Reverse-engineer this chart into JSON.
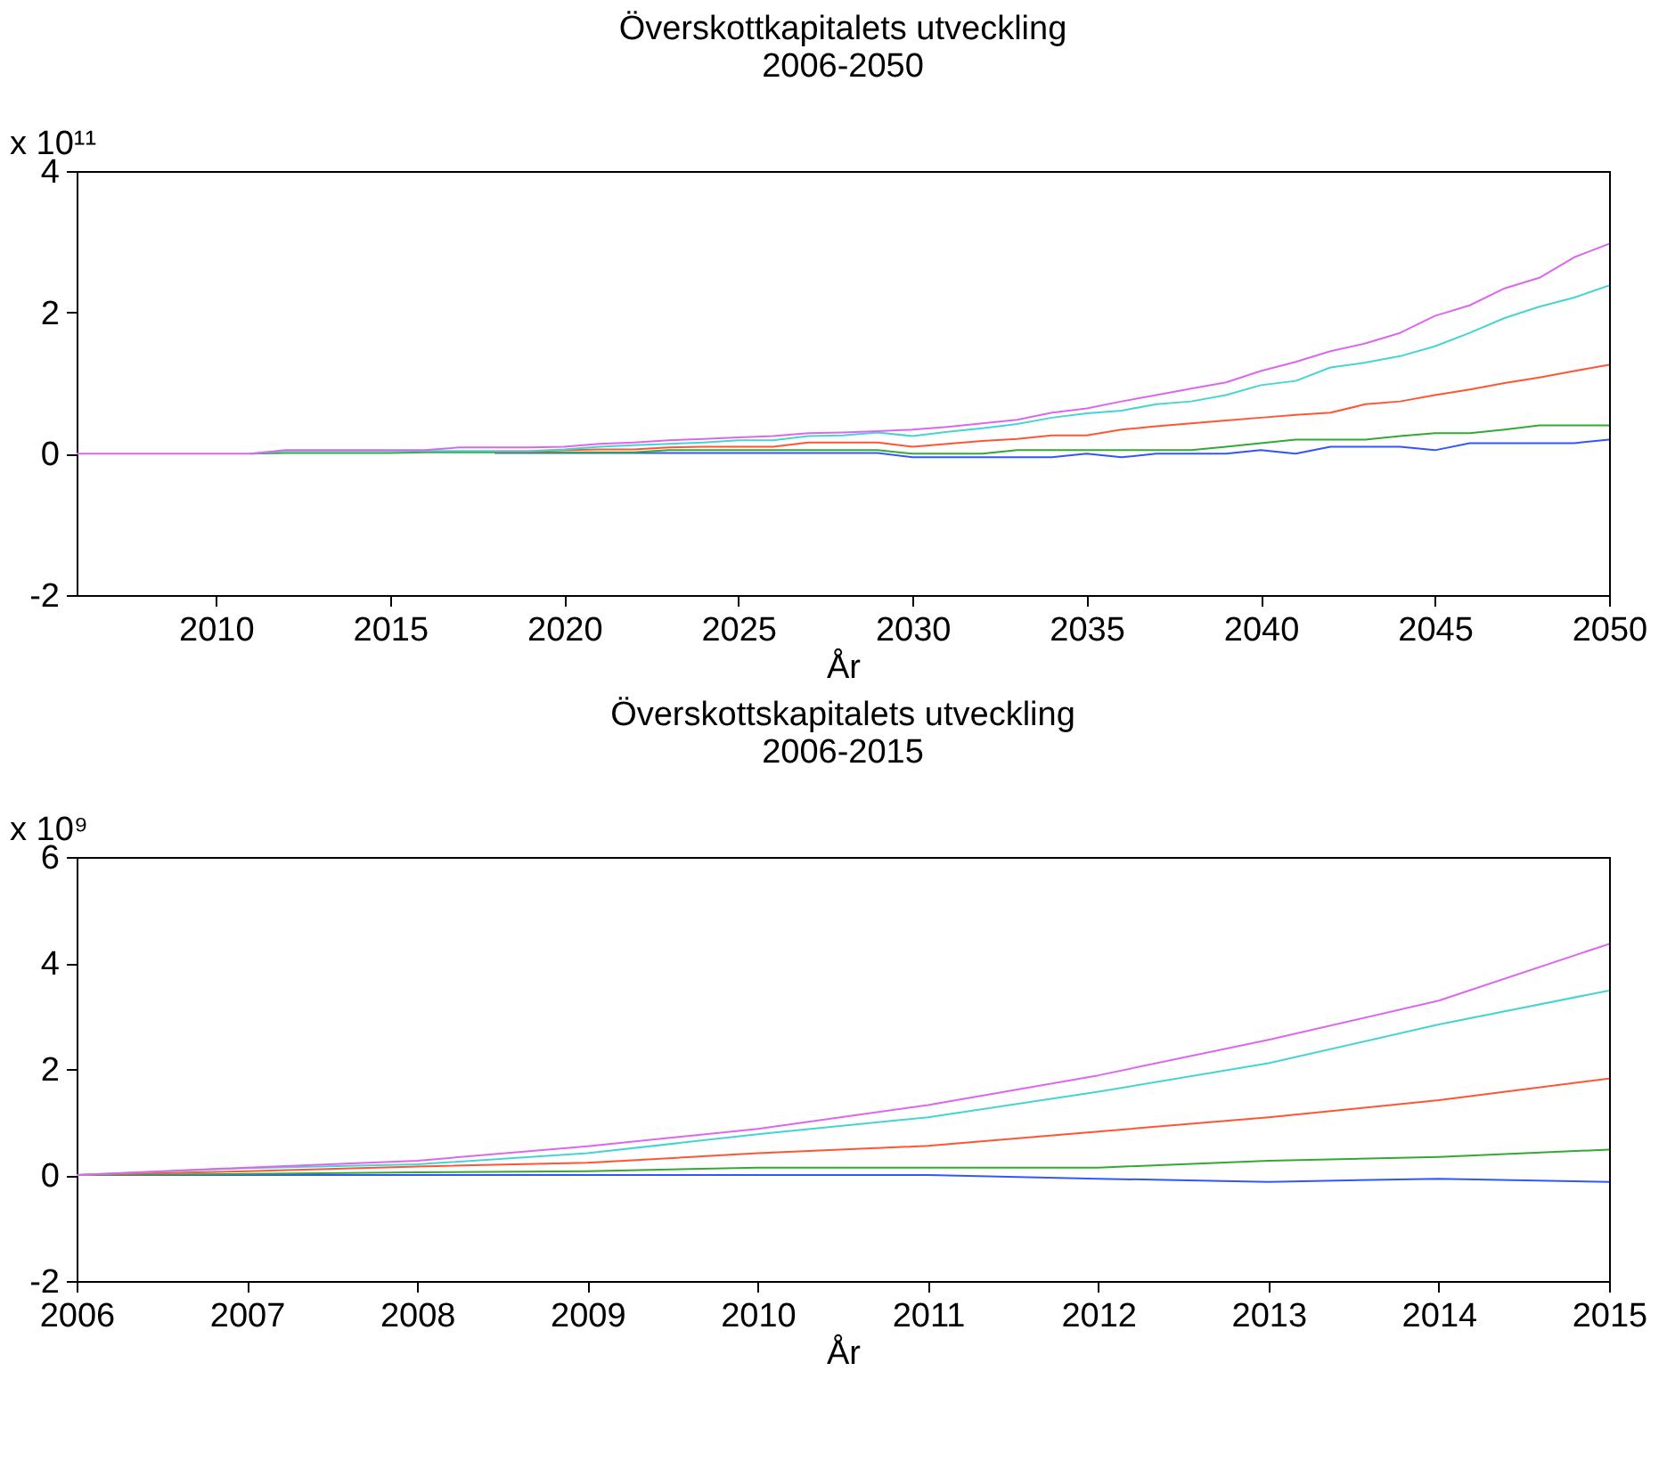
{
  "chart_data": [
    {
      "type": "line",
      "title": "Överskottkapitalets utveckling",
      "subtitle": "2006-2050",
      "xlabel": "År",
      "ylabel": "x 10¹¹",
      "x": [
        2006,
        2007,
        2008,
        2009,
        2010,
        2011,
        2012,
        2013,
        2014,
        2015,
        2016,
        2017,
        2018,
        2019,
        2020,
        2021,
        2022,
        2023,
        2024,
        2025,
        2026,
        2027,
        2028,
        2029,
        2030,
        2031,
        2032,
        2033,
        2034,
        2035,
        2036,
        2037,
        2038,
        2039,
        2040,
        2041,
        2042,
        2043,
        2044,
        2045,
        2046,
        2047,
        2048,
        2049,
        2050
      ],
      "series": [
        {
          "color": "#dd66ee",
          "values": [
            0,
            0,
            0,
            0,
            0,
            0,
            0.05,
            0.05,
            0.05,
            0.05,
            0.05,
            0.09,
            0.09,
            0.09,
            0.1,
            0.14,
            0.16,
            0.19,
            0.21,
            0.23,
            0.25,
            0.29,
            0.3,
            0.32,
            0.34,
            0.38,
            0.43,
            0.48,
            0.58,
            0.64,
            0.74,
            0.83,
            0.92,
            1.01,
            1.17,
            1.3,
            1.45,
            1.56,
            1.71,
            1.95,
            2.1,
            2.34,
            2.49,
            2.78,
            2.97
          ]
        },
        {
          "color": "#44d4d4",
          "values": [
            null,
            null,
            null,
            null,
            null,
            0,
            0.04,
            0.04,
            0.04,
            0.04,
            0.04,
            0.04,
            0.04,
            0.04,
            0.06,
            0.1,
            0.12,
            0.14,
            0.16,
            0.19,
            0.19,
            0.25,
            0.26,
            0.3,
            0.25,
            0.31,
            0.36,
            0.42,
            0.51,
            0.57,
            0.61,
            0.7,
            0.74,
            0.83,
            0.97,
            1.03,
            1.22,
            1.29,
            1.38,
            1.52,
            1.71,
            1.92,
            2.08,
            2.21,
            2.38
          ]
        },
        {
          "color": "#ff5533",
          "values": [
            null,
            null,
            null,
            null,
            null,
            null,
            null,
            null,
            null,
            null,
            null,
            null,
            0.03,
            0.03,
            0.05,
            0.06,
            0.06,
            0.09,
            0.1,
            0.1,
            0.1,
            0.16,
            0.16,
            0.16,
            0.1,
            0.14,
            0.18,
            0.21,
            0.26,
            0.26,
            0.34,
            0.39,
            0.43,
            0.47,
            0.51,
            0.55,
            0.58,
            0.7,
            0.74,
            0.83,
            0.91,
            1.0,
            1.08,
            1.17,
            1.26
          ]
        },
        {
          "color": "#33aa33",
          "values": [
            null,
            null,
            null,
            null,
            null,
            0,
            0.01,
            0.01,
            0.01,
            0.01,
            0.02,
            0.02,
            0.02,
            0.02,
            0.02,
            0.02,
            0.02,
            0.05,
            0.05,
            0.05,
            0.05,
            0.05,
            0.05,
            0.05,
            0,
            0,
            0,
            0.05,
            0.05,
            0.05,
            0.05,
            0.05,
            0.05,
            0.1,
            0.15,
            0.2,
            0.2,
            0.2,
            0.25,
            0.29,
            0.29,
            0.34,
            0.4,
            0.4,
            0.4
          ]
        },
        {
          "color": "#3355ff",
          "values": [
            null,
            null,
            null,
            null,
            null,
            null,
            null,
            null,
            null,
            null,
            null,
            null,
            0.01,
            0.01,
            0.01,
            0.01,
            0.01,
            0.01,
            0.01,
            0.01,
            0.01,
            0.01,
            0.01,
            0.01,
            -0.05,
            -0.05,
            -0.05,
            -0.05,
            -0.05,
            0,
            -0.05,
            0,
            0,
            0,
            0.05,
            0,
            0.1,
            0.1,
            0.1,
            0.05,
            0.15,
            0.15,
            0.15,
            0.15,
            0.2
          ]
        }
      ],
      "xlim": [
        2006,
        2050
      ],
      "xticks": [
        2010,
        2015,
        2020,
        2025,
        2030,
        2035,
        2040,
        2045,
        2050
      ],
      "ylim": [
        -2,
        4
      ],
      "yticks": [
        -2,
        0,
        2,
        4
      ],
      "grid": false,
      "legend": false
    },
    {
      "type": "line",
      "title": "Överskottskapitalets utveckling",
      "subtitle": "2006-2015",
      "xlabel": "År",
      "ylabel": "x 10⁹",
      "x": [
        2006,
        2007,
        2008,
        2009,
        2010,
        2011,
        2012,
        2013,
        2014,
        2015
      ],
      "series": [
        {
          "color": "#dd66ee",
          "values": [
            0,
            0.14,
            0.27,
            0.54,
            0.87,
            1.32,
            1.88,
            2.55,
            3.29,
            4.36
          ]
        },
        {
          "color": "#44d4d4",
          "values": [
            0,
            0.13,
            0.2,
            0.41,
            0.77,
            1.09,
            1.57,
            2.11,
            2.84,
            3.48
          ]
        },
        {
          "color": "#ff5533",
          "values": [
            0,
            0.07,
            0.16,
            0.23,
            0.41,
            0.55,
            0.82,
            1.09,
            1.41,
            1.82
          ]
        },
        {
          "color": "#33aa33",
          "values": [
            0,
            0.02,
            0.05,
            0.07,
            0.14,
            0.14,
            0.14,
            0.27,
            0.34,
            0.48
          ]
        },
        {
          "color": "#3355ff",
          "values": [
            0,
            0,
            0,
            0,
            0,
            0,
            -0.07,
            -0.13,
            -0.07,
            -0.13
          ]
        }
      ],
      "xlim": [
        2006,
        2015
      ],
      "xticks": [
        2006,
        2007,
        2008,
        2009,
        2010,
        2011,
        2012,
        2013,
        2014,
        2015
      ],
      "ylim": [
        -2,
        6
      ],
      "yticks": [
        -2,
        0,
        2,
        4,
        6
      ],
      "grid": false,
      "legend": false
    }
  ]
}
